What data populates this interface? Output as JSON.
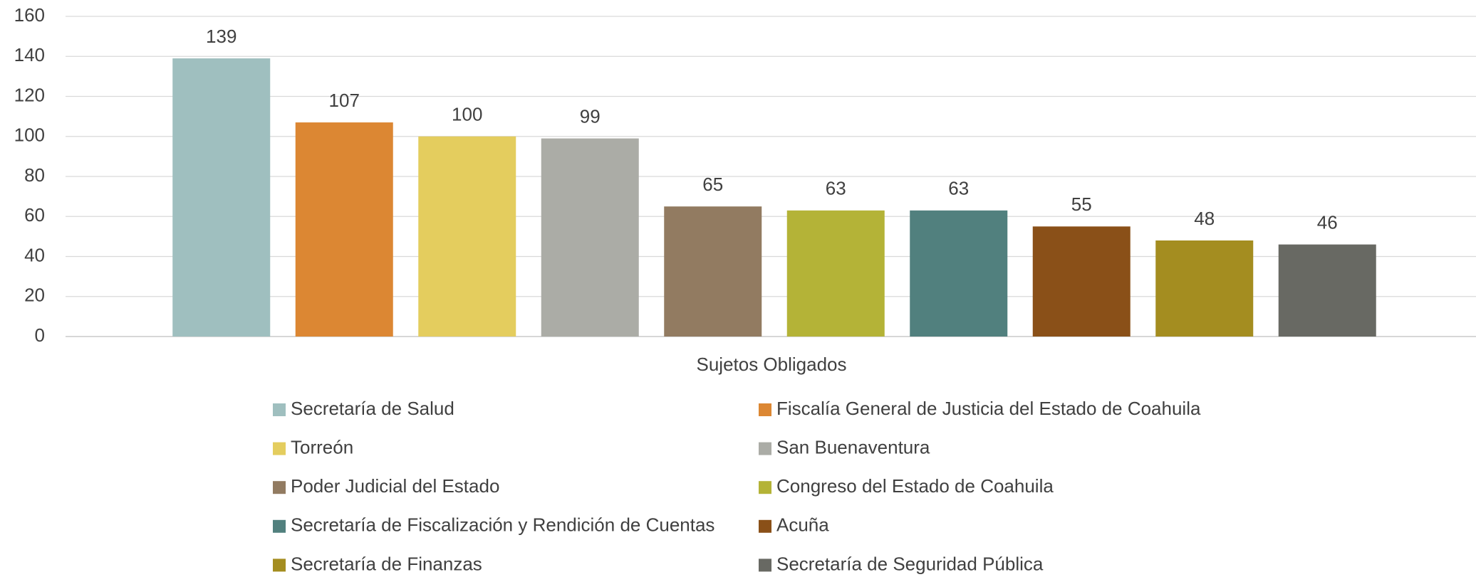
{
  "chart_data": {
    "type": "bar",
    "categories": [
      "Sujetos Obligados"
    ],
    "series": [
      {
        "name": "Secretaría de Salud",
        "color": "#9fbfbf",
        "values": [
          139
        ]
      },
      {
        "name": "Fiscalía General de Justicia del Estado de Coahuila",
        "color": "#dc8733",
        "values": [
          107
        ]
      },
      {
        "name": "Torreón",
        "color": "#e4cd5e",
        "values": [
          100
        ]
      },
      {
        "name": "San Buenaventura",
        "color": "#abaca6",
        "values": [
          99
        ]
      },
      {
        "name": "Poder Judicial del Estado",
        "color": "#927b61",
        "values": [
          65
        ]
      },
      {
        "name": "Congreso del Estado de Coahuila",
        "color": "#b4b337",
        "values": [
          63
        ]
      },
      {
        "name": "Secretaría de Fiscalización y Rendición de Cuentas",
        "color": "#51807e",
        "values": [
          63
        ]
      },
      {
        "name": "Acuña",
        "color": "#8a5018",
        "values": [
          55
        ]
      },
      {
        "name": "Secretaría de Finanzas",
        "color": "#a48d20",
        "values": [
          48
        ]
      },
      {
        "name": "Secretaría de Seguridad Pública",
        "color": "#686963",
        "values": [
          46
        ]
      }
    ],
    "ylim": [
      0,
      160
    ],
    "yticks": [
      0,
      20,
      40,
      60,
      80,
      100,
      120,
      140,
      160
    ],
    "grid": true,
    "legend": "bottom"
  }
}
